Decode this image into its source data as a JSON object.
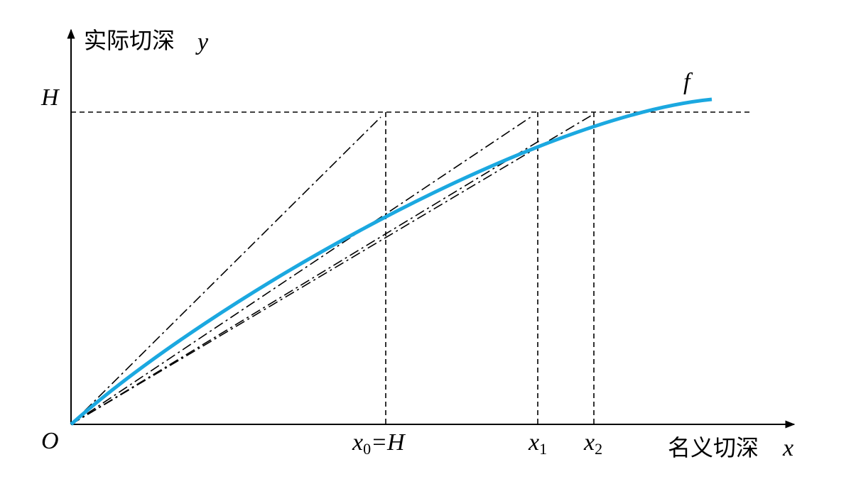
{
  "diagram": {
    "y_axis": {
      "label": "实际切深",
      "var": "y"
    },
    "x_axis": {
      "label": "名义切深",
      "var": "x"
    },
    "origin": "O",
    "h_level": "H",
    "curve": "f",
    "x0": {
      "var": "x",
      "sub": "0",
      "suffix": "=H"
    },
    "x1": {
      "var": "x",
      "sub": "1"
    },
    "x2": {
      "var": "x",
      "sub": "2"
    }
  }
}
